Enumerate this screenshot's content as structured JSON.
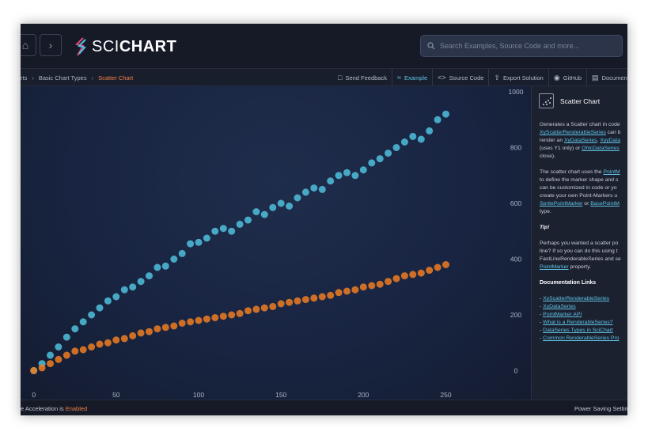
{
  "header": {
    "logo_sci": "SCI",
    "logo_chart": "CHART",
    "search_placeholder": "Search Examples, Source Code and more..."
  },
  "breadcrumb": {
    "items": [
      "rts",
      "Basic Chart Types",
      "Scatter Chart"
    ]
  },
  "toolbar": {
    "items": [
      {
        "label": "Send Feedback",
        "icon": "feedback-icon"
      },
      {
        "label": "Example",
        "icon": "chart-icon",
        "selected": true
      },
      {
        "label": "Source Code",
        "icon": "code-icon"
      },
      {
        "label": "Export Solution",
        "icon": "export-icon"
      },
      {
        "label": "GitHub",
        "icon": "github-icon"
      },
      {
        "label": "Documentation",
        "icon": "document-icon"
      }
    ]
  },
  "panel": {
    "title": "Scatter Chart",
    "p1_l1": "Generates a Scatter chart in code",
    "p1_link1": "XyScatterRenderableSeries",
    "p1_l2_rest": " can b",
    "p1_l3_pre": "render an ",
    "p1_link2": "XyDataSeries",
    "p1_l3_mid": ", ",
    "p1_link3": "XyyData",
    "p1_l4": "(uses Y1 only) or ",
    "p1_link4": "OhlcDataSeries",
    "p1_l5": "close).",
    "p2_l1_pre": "The scatter chart uses the ",
    "p2_link1": "PointM",
    "p2_l2": "to define the marker shape and s",
    "p2_l3": "can be customized in code or yo",
    "p2_l4": "create your own Point-Markers u",
    "p2_link2": "SpritePointMarker",
    "p2_l5_mid": " or ",
    "p2_link3": "BasePointM",
    "p2_l6": "type.",
    "tip_title": "Tip!",
    "tip_l1": "Perhaps you wanted a scatter po",
    "tip_l2": "line? If so you can do this using t",
    "tip_l3": "FastLineRenderableSeries and se",
    "tip_link": "PointMarker",
    "tip_l4_rest": " property.",
    "links_title": "Documentation Links",
    "links": [
      "XyScatterRenderableSeries",
      "XyDataSeries",
      "PointMarker API",
      "What is a RenderableSeries?",
      "DataSeries Types in SciChart",
      "Common RenderableSeries Pro"
    ]
  },
  "status": {
    "accel_prefix": "e Acceleration is ",
    "accel_value": "Enabled",
    "power": "Power Saving Settin"
  },
  "colors": {
    "series_upper": "#4fc0dc",
    "series_lower": "#ee7d22",
    "accent_link": "#5fc3e4",
    "accent_orange": "#f07f4a"
  },
  "chart_data": {
    "type": "scatter",
    "xlim": [
      -8,
      280
    ],
    "ylim": [
      -30,
      1020
    ],
    "x_ticks": [
      "0",
      "50",
      "100",
      "150",
      "200",
      "250"
    ],
    "y_ticks": [
      "0",
      "200",
      "400",
      "600",
      "800",
      "1000"
    ],
    "series": [
      {
        "x": [
          0,
          5,
          10,
          15,
          20,
          25,
          30,
          35,
          40,
          45,
          50,
          55,
          60,
          65,
          70,
          75,
          80,
          85,
          90,
          95,
          100,
          105,
          110,
          115,
          120,
          125,
          130,
          135,
          140,
          145,
          150,
          155,
          160,
          165,
          170,
          175,
          180,
          185,
          190,
          195,
          200,
          205,
          210,
          215,
          220,
          225,
          230,
          235,
          240,
          245,
          250
        ],
        "y": [
          0,
          25,
          55,
          85,
          120,
          150,
          175,
          200,
          225,
          250,
          265,
          290,
          300,
          320,
          340,
          370,
          375,
          400,
          420,
          455,
          460,
          475,
          500,
          510,
          500,
          525,
          540,
          570,
          560,
          585,
          600,
          590,
          620,
          640,
          655,
          650,
          680,
          700,
          710,
          700,
          720,
          745,
          760,
          780,
          800,
          820,
          840,
          830,
          860,
          900,
          920
        ]
      },
      {
        "x": [
          0,
          5,
          10,
          15,
          20,
          25,
          30,
          35,
          40,
          45,
          50,
          55,
          60,
          65,
          70,
          75,
          80,
          85,
          90,
          95,
          100,
          105,
          110,
          115,
          120,
          125,
          130,
          135,
          140,
          145,
          150,
          155,
          160,
          165,
          170,
          175,
          180,
          185,
          190,
          195,
          200,
          205,
          210,
          215,
          220,
          225,
          230,
          235,
          240,
          245,
          250
        ],
        "y": [
          0,
          10,
          25,
          40,
          55,
          70,
          75,
          85,
          95,
          100,
          110,
          115,
          125,
          135,
          140,
          150,
          155,
          160,
          170,
          175,
          180,
          185,
          190,
          195,
          200,
          205,
          215,
          220,
          225,
          230,
          240,
          245,
          250,
          255,
          260,
          265,
          270,
          280,
          285,
          290,
          300,
          305,
          310,
          320,
          330,
          340,
          345,
          350,
          360,
          370,
          380
        ]
      }
    ]
  }
}
